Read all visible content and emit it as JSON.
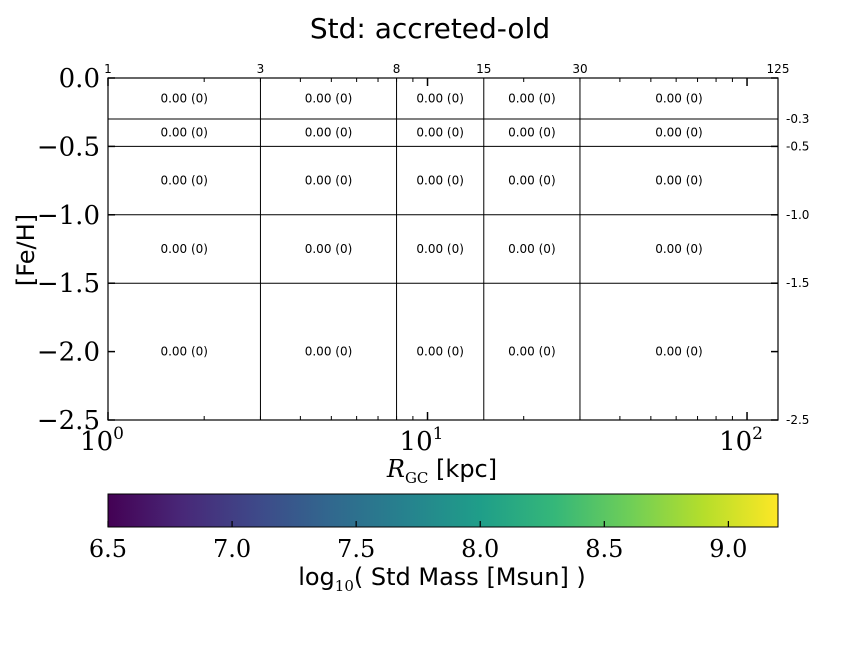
{
  "chart_data": {
    "type": "heatmap",
    "title": "Std:  accreted-old",
    "xlabel": "R",
    "xlabel_sub": "GC",
    "xlabel_unit": " [kpc]",
    "ylabel": "[Fe/H]",
    "x_scale": "log",
    "xlim": [
      1,
      125
    ],
    "ylim": [
      -2.5,
      0.0
    ],
    "grid": false,
    "x_ticks": [
      {
        "base": "10",
        "exp": "0",
        "value": 1
      },
      {
        "base": "10",
        "exp": "1",
        "value": 10
      },
      {
        "base": "10",
        "exp": "2",
        "value": 100
      }
    ],
    "y_ticks": [
      "0.0",
      "-0.5",
      "-1.0",
      "-1.5",
      "-2.0",
      "-2.5"
    ],
    "y_tick_values": [
      0.0,
      -0.5,
      -1.0,
      -1.5,
      -2.0,
      -2.5
    ],
    "x_bin_edges": [
      1,
      3,
      8,
      15,
      30,
      125
    ],
    "x_bin_edge_labels": [
      "1",
      "3",
      "8",
      "15",
      "30",
      "125"
    ],
    "y_bin_edges": [
      0.0,
      -0.3,
      -0.5,
      -1.0,
      -1.5,
      -2.5
    ],
    "y_bin_edge_labels": [
      "-0.3",
      "-0.5",
      "-1.0",
      "-1.5",
      "-2.5"
    ],
    "y_bin_edge_label_values": [
      -0.3,
      -0.5,
      -1.0,
      -1.5,
      -2.5
    ],
    "cells": [
      [
        "0.00 (0)",
        "0.00 (0)",
        "0.00 (0)",
        "0.00 (0)",
        "0.00 (0)"
      ],
      [
        "0.00 (0)",
        "0.00 (0)",
        "0.00 (0)",
        "0.00 (0)",
        "0.00 (0)"
      ],
      [
        "0.00 (0)",
        "0.00 (0)",
        "0.00 (0)",
        "0.00 (0)",
        "0.00 (0)"
      ],
      [
        "0.00 (0)",
        "0.00 (0)",
        "0.00 (0)",
        "0.00 (0)",
        "0.00 (0)"
      ],
      [
        "0.00 (0)",
        "0.00 (0)",
        "0.00 (0)",
        "0.00 (0)",
        "0.00 (0)"
      ]
    ],
    "colorbar": {
      "label_prefix": "log",
      "label_sub": "10",
      "label_suffix": "( Std Mass [Msun] )",
      "range": [
        6.5,
        9.2
      ],
      "ticks": [
        "6.5",
        "7.0",
        "7.5",
        "8.0",
        "8.5",
        "9.0"
      ],
      "tick_values": [
        6.5,
        7.0,
        7.5,
        8.0,
        8.5,
        9.0
      ],
      "colormap": "viridis",
      "stops": [
        "#440154",
        "#482878",
        "#3e4989",
        "#31688e",
        "#26828e",
        "#1f9e89",
        "#35b779",
        "#6ece58",
        "#b5de2b",
        "#fde725"
      ]
    }
  }
}
